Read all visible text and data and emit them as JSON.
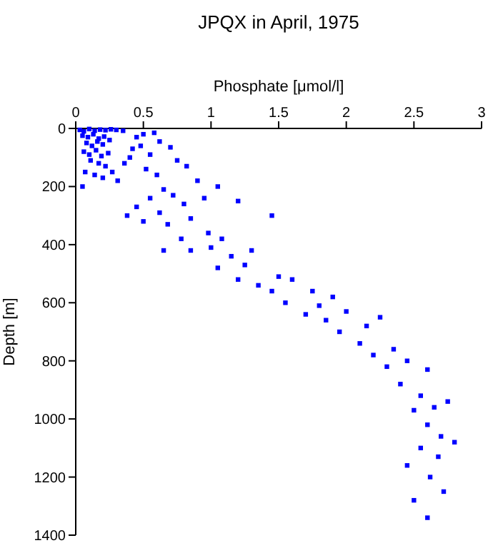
{
  "chart_data": {
    "type": "scatter",
    "title": "JPQX in April, 1975",
    "xlabel": "Phosphate [μmol/l]",
    "ylabel": "Depth [m]",
    "xlim": [
      0,
      3
    ],
    "xticks": [
      0,
      0.5,
      1,
      1.5,
      2,
      2.5,
      3
    ],
    "ylim": [
      1400,
      0
    ],
    "yticks": [
      0,
      200,
      400,
      600,
      800,
      1000,
      1200,
      1400
    ],
    "grid": false,
    "marker": "square",
    "series": [
      {
        "color": "#0000ff",
        "x": [
          0.03,
          0.06,
          0.1,
          0.14,
          0.18,
          0.22,
          0.26,
          0.3,
          0.35,
          0.05,
          0.09,
          0.13,
          0.17,
          0.21,
          0.08,
          0.12,
          0.16,
          0.2,
          0.25,
          0.06,
          0.1,
          0.15,
          0.19,
          0.24,
          0.11,
          0.17,
          0.22,
          0.07,
          0.14,
          0.2,
          0.27,
          0.05,
          0.31,
          0.36,
          0.42,
          0.45,
          0.5,
          0.58,
          0.4,
          0.48,
          0.55,
          0.62,
          0.7,
          0.75,
          0.52,
          0.6,
          0.82,
          0.9,
          0.65,
          0.55,
          0.72,
          0.45,
          0.38,
          0.5,
          0.62,
          0.8,
          0.95,
          1.05,
          1.2,
          1.45,
          0.68,
          0.85,
          0.78,
          0.98,
          1.08,
          0.65,
          0.85,
          1.0,
          1.15,
          1.3,
          1.25,
          1.05,
          1.2,
          1.35,
          1.5,
          1.45,
          1.6,
          1.75,
          1.55,
          1.8,
          1.9,
          1.7,
          1.85,
          2.0,
          1.95,
          2.15,
          2.25,
          2.1,
          2.2,
          2.35,
          2.3,
          2.45,
          2.6,
          2.4,
          2.55,
          2.5,
          2.65,
          2.75,
          2.6,
          2.7,
          2.8,
          2.55,
          2.68,
          2.45,
          2.62,
          2.72,
          2.5,
          2.6
        ],
        "values": [
          5,
          10,
          2,
          8,
          4,
          6,
          3,
          5,
          8,
          25,
          30,
          20,
          35,
          28,
          50,
          60,
          45,
          55,
          40,
          80,
          90,
          75,
          95,
          85,
          110,
          120,
          130,
          150,
          160,
          170,
          150,
          200,
          180,
          120,
          70,
          30,
          20,
          15,
          100,
          60,
          90,
          45,
          65,
          110,
          140,
          160,
          130,
          180,
          210,
          240,
          230,
          270,
          300,
          320,
          290,
          260,
          240,
          200,
          250,
          300,
          330,
          310,
          380,
          360,
          380,
          420,
          420,
          410,
          440,
          420,
          470,
          480,
          520,
          540,
          510,
          560,
          520,
          560,
          600,
          610,
          580,
          640,
          660,
          630,
          700,
          680,
          650,
          740,
          780,
          760,
          820,
          800,
          830,
          880,
          920,
          970,
          960,
          940,
          1020,
          1060,
          1080,
          1100,
          1130,
          1160,
          1200,
          1250,
          1280,
          1340
        ]
      }
    ]
  }
}
